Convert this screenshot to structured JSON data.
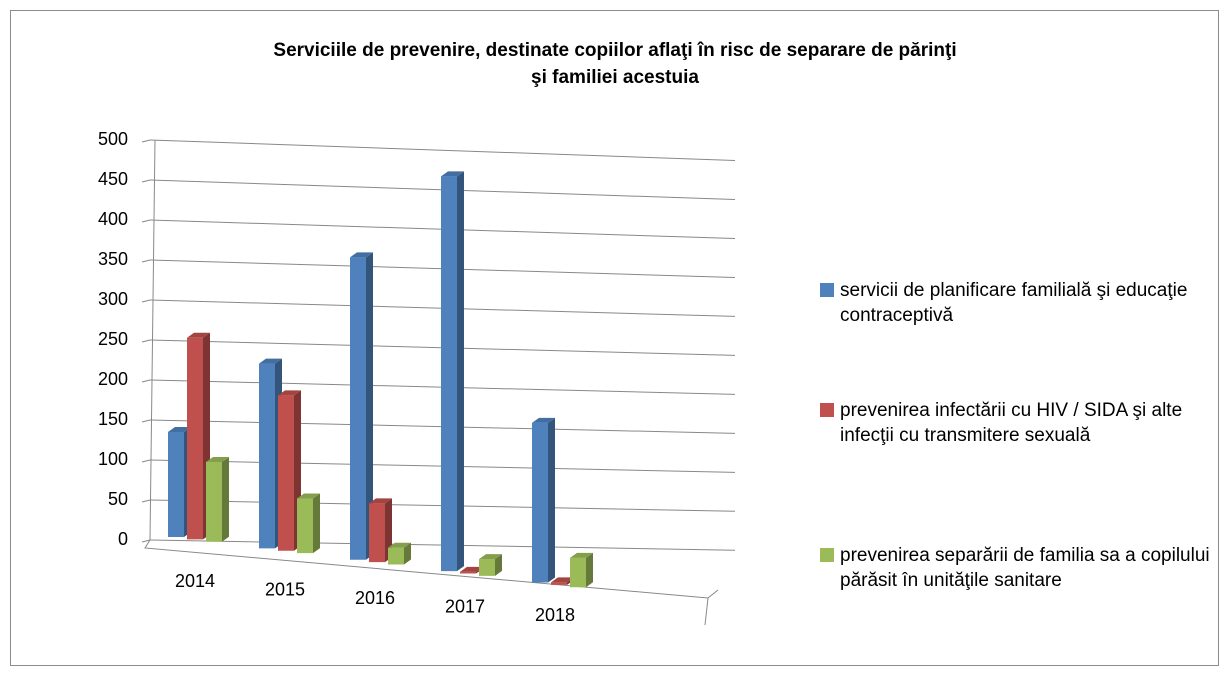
{
  "chart_data": {
    "type": "bar3d",
    "title": [
      "Serviciile de prevenire, destinate copiilor aflaţi în risc de separare de părinţi",
      "şi familiei acestuia"
    ],
    "categories": [
      "2014",
      "2015",
      "2016",
      "2017",
      "2018"
    ],
    "series": [
      {
        "name": "servicii de planificare familială şi educaţie contraceptivă",
        "color": "#4f81bd",
        "values": [
          125,
          220,
          360,
          470,
          190
        ]
      },
      {
        "name": "prevenirea infectării cu HIV / SIDA şi alte infecţii cu transmitere sexuală",
        "color": "#c0504d",
        "values": [
          240,
          185,
          70,
          2,
          3
        ]
      },
      {
        "name": "prevenirea separării de familia sa a copilului părăsit în unităţile sanitare",
        "color": "#9bbb59",
        "values": [
          95,
          65,
          20,
          20,
          35
        ]
      }
    ],
    "ylim": [
      0,
      500
    ],
    "yticks": [
      0,
      50,
      100,
      150,
      200,
      250,
      300,
      350,
      400,
      450,
      500
    ],
    "grid": true,
    "legend": "right"
  }
}
